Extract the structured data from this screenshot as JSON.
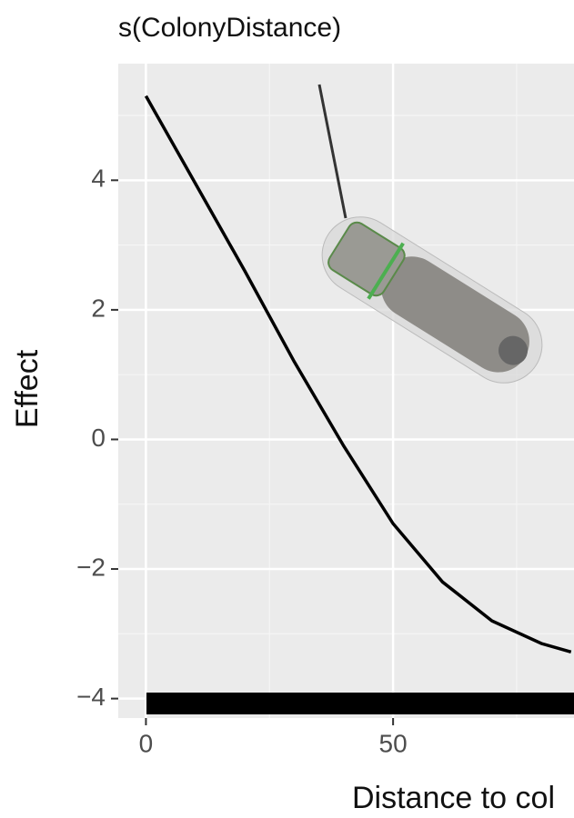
{
  "chart_data": {
    "type": "line",
    "title": "s(ColonyDistance)",
    "x_label": "Distance to col",
    "y_label": "Effect",
    "x": [
      0,
      10,
      20,
      30,
      40,
      50,
      60,
      70,
      80,
      86
    ],
    "series": [
      {
        "color": "#000000",
        "values": [
          5.3,
          3.95,
          2.6,
          1.2,
          -0.1,
          -1.3,
          -2.2,
          -2.8,
          -3.15,
          -3.28
        ]
      }
    ],
    "xlim": [
      -5.6,
      86.6
    ],
    "ylim": [
      -4.3,
      5.8
    ],
    "xticks": [
      0,
      50
    ],
    "yticks": [
      {
        "value": -4,
        "label": "−4"
      },
      {
        "value": -2,
        "label": "−2"
      },
      0,
      2,
      4
    ],
    "grid": true
  }
}
